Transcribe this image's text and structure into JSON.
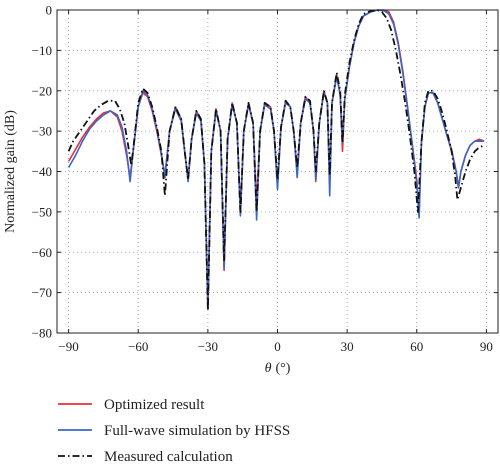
{
  "chart_data": {
    "type": "line",
    "title": "",
    "xlabel_symbol": "θ",
    "xlabel_unit": "(°)",
    "ylabel": "Normalized gain (dB)",
    "xlim": [
      -95,
      95
    ],
    "ylim": [
      -80,
      0
    ],
    "xticks": [
      -90,
      -60,
      -30,
      0,
      30,
      60,
      90
    ],
    "yticks": [
      0,
      -10,
      -20,
      -30,
      -40,
      -50,
      -60,
      -70,
      -80
    ],
    "grid": true,
    "grid_style": "dotted",
    "legend_position": "bottom-left-below-plot",
    "series": [
      {
        "name": "Optimized result",
        "color": "#e8303a",
        "style": "solid",
        "points": [
          [
            -90,
            -37.5
          ],
          [
            -87,
            -34.5
          ],
          [
            -84,
            -31.5
          ],
          [
            -81,
            -29
          ],
          [
            -78,
            -27
          ],
          [
            -75,
            -25.5
          ],
          [
            -72,
            -25
          ],
          [
            -69,
            -26.5
          ],
          [
            -67,
            -30
          ],
          [
            -65,
            -36
          ],
          [
            -63.5,
            -41.5
          ],
          [
            -62,
            -34
          ],
          [
            -60,
            -24
          ],
          [
            -58,
            -20.5
          ],
          [
            -56,
            -21.5
          ],
          [
            -54,
            -25
          ],
          [
            -52,
            -30
          ],
          [
            -50,
            -36
          ],
          [
            -48.5,
            -41
          ],
          [
            -46.5,
            -30
          ],
          [
            -44,
            -24
          ],
          [
            -41.5,
            -27
          ],
          [
            -40,
            -35
          ],
          [
            -38.5,
            -42
          ],
          [
            -37,
            -32
          ],
          [
            -35,
            -25
          ],
          [
            -33,
            -27
          ],
          [
            -31.5,
            -38
          ],
          [
            -30,
            -74
          ],
          [
            -28.5,
            -35
          ],
          [
            -26.5,
            -24.5
          ],
          [
            -24.5,
            -30
          ],
          [
            -23,
            -64.5
          ],
          [
            -21.5,
            -32
          ],
          [
            -19.5,
            -23
          ],
          [
            -17.5,
            -28
          ],
          [
            -16,
            -50.5
          ],
          [
            -14.5,
            -30
          ],
          [
            -12.5,
            -23
          ],
          [
            -10.5,
            -28
          ],
          [
            -9,
            -48
          ],
          [
            -7.5,
            -30
          ],
          [
            -5.5,
            -23
          ],
          [
            -3,
            -24
          ],
          [
            -1.5,
            -30
          ],
          [
            0,
            -43.5
          ],
          [
            1.5,
            -29
          ],
          [
            3.5,
            -22.5
          ],
          [
            5.5,
            -24
          ],
          [
            7,
            -30
          ],
          [
            8.5,
            -40
          ],
          [
            10,
            -28
          ],
          [
            12,
            -21.5
          ],
          [
            14,
            -23
          ],
          [
            15.5,
            -30
          ],
          [
            16.5,
            -42.5
          ],
          [
            18,
            -28
          ],
          [
            20,
            -20
          ],
          [
            21.5,
            -23
          ],
          [
            22.5,
            -43
          ],
          [
            23.5,
            -23
          ],
          [
            25.5,
            -16
          ],
          [
            27,
            -21
          ],
          [
            28,
            -35
          ],
          [
            29,
            -22
          ],
          [
            31,
            -14
          ],
          [
            33,
            -8
          ],
          [
            35,
            -4
          ],
          [
            37,
            -1.5
          ],
          [
            40,
            -0.5
          ],
          [
            43,
            0
          ],
          [
            46,
            0
          ],
          [
            48,
            -0.5
          ],
          [
            50,
            -3
          ],
          [
            52,
            -8
          ],
          [
            54,
            -15
          ],
          [
            56,
            -24
          ],
          [
            58,
            -33
          ],
          [
            60,
            -42
          ],
          [
            61,
            -51
          ],
          [
            62,
            -33
          ],
          [
            63.5,
            -24
          ],
          [
            65,
            -20.5
          ],
          [
            67,
            -20.5
          ],
          [
            69,
            -23
          ],
          [
            71,
            -27
          ],
          [
            73,
            -31
          ],
          [
            75,
            -34.5
          ],
          [
            77,
            -40
          ],
          [
            78,
            -44
          ],
          [
            79,
            -40
          ],
          [
            81,
            -36
          ],
          [
            83,
            -33.5
          ],
          [
            85,
            -32.5
          ],
          [
            87,
            -32
          ],
          [
            89,
            -32.5
          ]
        ]
      },
      {
        "name": "Full-wave simulation by HFSS",
        "color": "#3a66c4",
        "style": "solid",
        "points": [
          [
            -90,
            -39
          ],
          [
            -87,
            -36
          ],
          [
            -84,
            -32.5
          ],
          [
            -81,
            -29.5
          ],
          [
            -78,
            -27.5
          ],
          [
            -75,
            -26
          ],
          [
            -72,
            -25
          ],
          [
            -69,
            -26
          ],
          [
            -67,
            -29
          ],
          [
            -65,
            -35
          ],
          [
            -63.5,
            -42.5
          ],
          [
            -62,
            -34
          ],
          [
            -60,
            -24
          ],
          [
            -58,
            -20
          ],
          [
            -56,
            -21
          ],
          [
            -54,
            -24.5
          ],
          [
            -52,
            -29.5
          ],
          [
            -50,
            -35.5
          ],
          [
            -48.5,
            -41.5
          ],
          [
            -46.5,
            -30
          ],
          [
            -44,
            -24.5
          ],
          [
            -41.5,
            -27.5
          ],
          [
            -40,
            -35
          ],
          [
            -38.5,
            -42.5
          ],
          [
            -37,
            -32
          ],
          [
            -35,
            -25.5
          ],
          [
            -33,
            -27.5
          ],
          [
            -31.5,
            -38
          ],
          [
            -30,
            -74
          ],
          [
            -28.5,
            -35
          ],
          [
            -26.5,
            -25
          ],
          [
            -24.5,
            -30
          ],
          [
            -23,
            -64
          ],
          [
            -21.5,
            -32
          ],
          [
            -19.5,
            -23.5
          ],
          [
            -17.5,
            -28
          ],
          [
            -16,
            -51
          ],
          [
            -14.5,
            -30
          ],
          [
            -12.5,
            -23.5
          ],
          [
            -10.5,
            -28
          ],
          [
            -9,
            -52
          ],
          [
            -7.5,
            -30
          ],
          [
            -5.5,
            -23.5
          ],
          [
            -3,
            -24.5
          ],
          [
            -1.5,
            -30
          ],
          [
            0,
            -44.5
          ],
          [
            1.5,
            -29
          ],
          [
            3.5,
            -23
          ],
          [
            5.5,
            -24
          ],
          [
            7,
            -30
          ],
          [
            8.5,
            -41.5
          ],
          [
            10,
            -28
          ],
          [
            12,
            -22
          ],
          [
            14,
            -23
          ],
          [
            15.5,
            -30
          ],
          [
            16.5,
            -42
          ],
          [
            18,
            -28
          ],
          [
            20,
            -20.5
          ],
          [
            21.5,
            -23
          ],
          [
            22.5,
            -46
          ],
          [
            23.5,
            -23
          ],
          [
            25.5,
            -16.5
          ],
          [
            27,
            -21
          ],
          [
            28,
            -33
          ],
          [
            29,
            -22
          ],
          [
            31,
            -14
          ],
          [
            33,
            -8
          ],
          [
            35,
            -4
          ],
          [
            37,
            -1.5
          ],
          [
            40,
            -0.5
          ],
          [
            43,
            0
          ],
          [
            46,
            -0.2
          ],
          [
            48,
            -1
          ],
          [
            50,
            -3.5
          ],
          [
            52,
            -8.5
          ],
          [
            54,
            -15.5
          ],
          [
            56,
            -24
          ],
          [
            58,
            -33
          ],
          [
            60,
            -43
          ],
          [
            61,
            -51.5
          ],
          [
            62,
            -33
          ],
          [
            63.5,
            -24
          ],
          [
            65,
            -20.5
          ],
          [
            67,
            -20.5
          ],
          [
            69,
            -23
          ],
          [
            71,
            -27
          ],
          [
            73,
            -31
          ],
          [
            75,
            -35
          ],
          [
            77,
            -40
          ],
          [
            78,
            -44
          ],
          [
            79,
            -40
          ],
          [
            81,
            -36
          ],
          [
            83,
            -33.5
          ],
          [
            85,
            -32.5
          ],
          [
            87,
            -32.5
          ],
          [
            89,
            -32.5
          ]
        ]
      },
      {
        "name": "Measured calculation",
        "color": "#111111",
        "style": "dashdot",
        "points": [
          [
            -90,
            -35
          ],
          [
            -88,
            -32.5
          ],
          [
            -85,
            -30
          ],
          [
            -82,
            -27.5
          ],
          [
            -79,
            -25
          ],
          [
            -76,
            -23.5
          ],
          [
            -73,
            -22.5
          ],
          [
            -70,
            -22.5
          ],
          [
            -68,
            -24.5
          ],
          [
            -66,
            -28
          ],
          [
            -64.5,
            -33
          ],
          [
            -63,
            -38.5
          ],
          [
            -61.5,
            -31
          ],
          [
            -60,
            -23
          ],
          [
            -58,
            -19.5
          ],
          [
            -56,
            -20.5
          ],
          [
            -54,
            -24
          ],
          [
            -52,
            -29
          ],
          [
            -50,
            -35
          ],
          [
            -48.5,
            -46
          ],
          [
            -46.5,
            -30
          ],
          [
            -44,
            -24
          ],
          [
            -41.5,
            -27
          ],
          [
            -40,
            -35
          ],
          [
            -38.5,
            -42
          ],
          [
            -37,
            -32
          ],
          [
            -35,
            -25
          ],
          [
            -33,
            -27
          ],
          [
            -31.5,
            -38
          ],
          [
            -30,
            -74.5
          ],
          [
            -28.5,
            -35
          ],
          [
            -26.5,
            -24.5
          ],
          [
            -24.5,
            -30
          ],
          [
            -23,
            -62
          ],
          [
            -21.5,
            -32
          ],
          [
            -19.5,
            -23
          ],
          [
            -17.5,
            -28
          ],
          [
            -16,
            -50
          ],
          [
            -14.5,
            -30
          ],
          [
            -12.5,
            -23
          ],
          [
            -10.5,
            -28
          ],
          [
            -9,
            -50
          ],
          [
            -7.5,
            -30
          ],
          [
            -5.5,
            -23
          ],
          [
            -3,
            -24
          ],
          [
            -1.5,
            -30
          ],
          [
            0,
            -42
          ],
          [
            1.5,
            -29
          ],
          [
            3.5,
            -22.5
          ],
          [
            5.5,
            -24
          ],
          [
            7,
            -30
          ],
          [
            8.5,
            -39
          ],
          [
            10,
            -28
          ],
          [
            12,
            -21.5
          ],
          [
            14,
            -22.5
          ],
          [
            15.5,
            -30
          ],
          [
            16.5,
            -40
          ],
          [
            18,
            -28
          ],
          [
            20,
            -20
          ],
          [
            21.5,
            -23
          ],
          [
            22.5,
            -41
          ],
          [
            23.5,
            -23
          ],
          [
            25.5,
            -15.5
          ],
          [
            27,
            -20
          ],
          [
            28,
            -33
          ],
          [
            29,
            -21
          ],
          [
            31,
            -13
          ],
          [
            33,
            -7.5
          ],
          [
            35,
            -3.5
          ],
          [
            37,
            -1
          ],
          [
            40,
            -0.3
          ],
          [
            43,
            0
          ],
          [
            45,
            -0.5
          ],
          [
            47,
            -2
          ],
          [
            49,
            -5
          ],
          [
            51,
            -10
          ],
          [
            53,
            -16
          ],
          [
            55,
            -23
          ],
          [
            57,
            -31
          ],
          [
            59,
            -40
          ],
          [
            60.5,
            -50
          ],
          [
            62,
            -33
          ],
          [
            63.5,
            -23
          ],
          [
            65,
            -20
          ],
          [
            67,
            -20
          ],
          [
            69,
            -22
          ],
          [
            71,
            -25.5
          ],
          [
            73,
            -30
          ],
          [
            75,
            -35
          ],
          [
            76.5,
            -41
          ],
          [
            77.5,
            -47
          ],
          [
            79,
            -44
          ],
          [
            81,
            -40
          ],
          [
            83,
            -37
          ],
          [
            85,
            -35
          ],
          [
            87,
            -34
          ],
          [
            89,
            -33.5
          ]
        ]
      }
    ]
  }
}
